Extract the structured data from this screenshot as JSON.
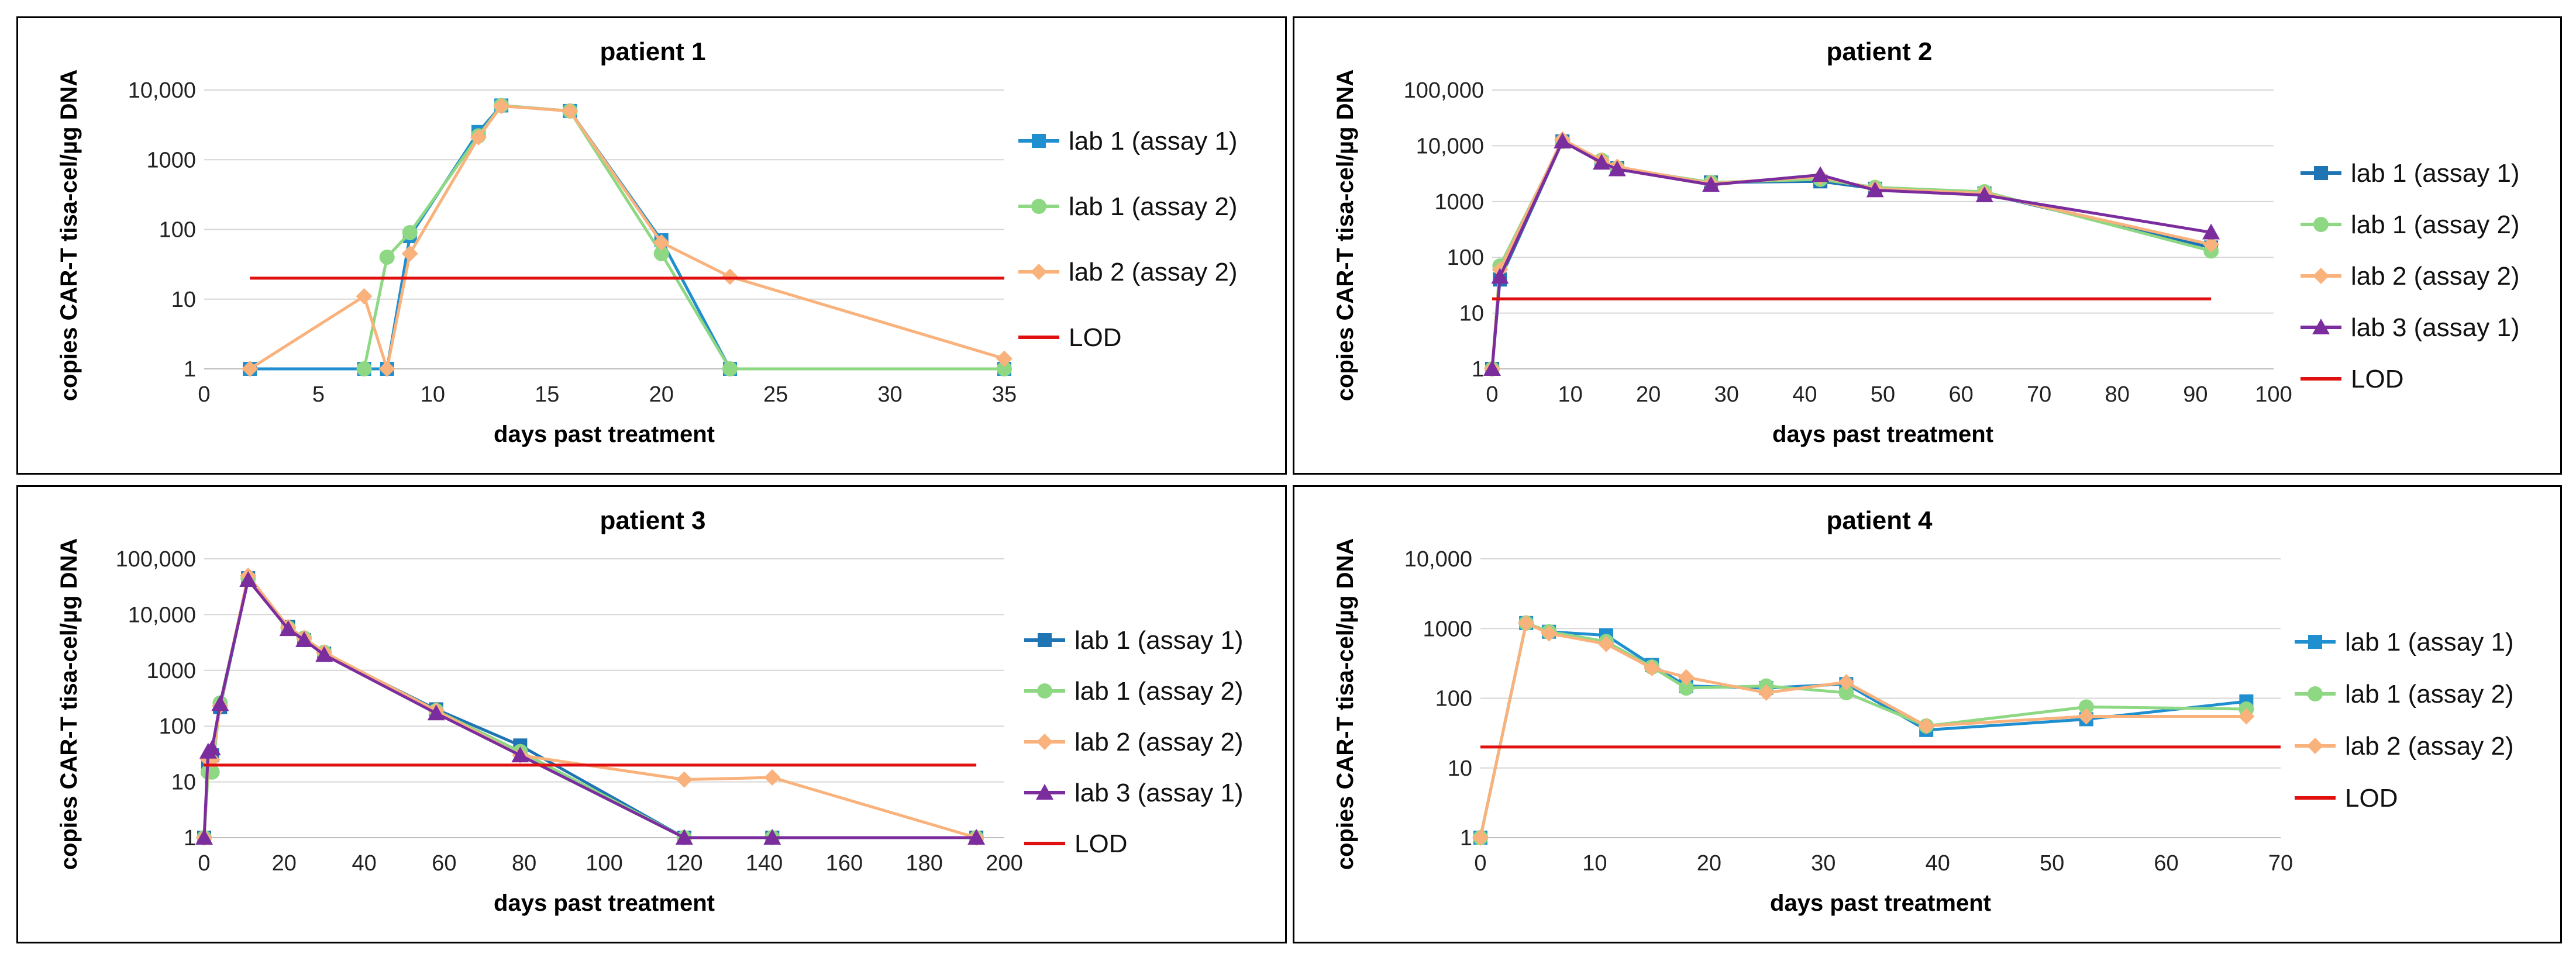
{
  "chart_data": [
    {
      "type": "line",
      "title": "patient 1",
      "xlabel": "days past treatment",
      "ylabel": "copies CAR-T tisa-cel/µg DNA",
      "yscale": "log",
      "xlim": [
        0,
        35
      ],
      "xticks": [
        0,
        5,
        10,
        15,
        20,
        25,
        30,
        35
      ],
      "ylim": [
        1,
        10000
      ],
      "yticks": [
        1,
        10,
        100,
        1000,
        10000
      ],
      "ytick_labels": [
        "1",
        "10",
        "100",
        "1000",
        "10,000"
      ],
      "grid": true,
      "legend_position": "right",
      "series": [
        {
          "name": "lab 1 (assay 1)",
          "color": "#1f8fcf",
          "marker": "square",
          "x": [
            2,
            7,
            8,
            9,
            12,
            13,
            16,
            20,
            23,
            35
          ],
          "y": [
            1,
            1,
            1,
            80,
            2500,
            6000,
            5000,
            70,
            1,
            1
          ]
        },
        {
          "name": "lab 1 (assay 2)",
          "color": "#8ed883",
          "marker": "circle",
          "x": [
            7,
            8,
            9,
            12,
            13,
            16,
            20,
            23,
            35
          ],
          "y": [
            1,
            40,
            90,
            2200,
            6000,
            5000,
            45,
            1,
            1
          ]
        },
        {
          "name": "lab 2 (assay 2)",
          "color": "#f9b27c",
          "marker": "diamond",
          "x": [
            2,
            7,
            8,
            9,
            12,
            13,
            16,
            20,
            23,
            35
          ],
          "y": [
            1,
            11,
            1,
            45,
            2100,
            5900,
            5000,
            65,
            21,
            1.4
          ]
        },
        {
          "name": "LOD",
          "color": "#e01010",
          "marker": "none",
          "x": [
            2,
            35
          ],
          "y": [
            20,
            20
          ]
        }
      ]
    },
    {
      "type": "line",
      "title": "patient 2",
      "xlabel": "days past treatment",
      "ylabel": "copies CAR-T tisa-cel/µg DNA",
      "yscale": "log",
      "xlim": [
        0,
        100
      ],
      "xticks": [
        0,
        10,
        20,
        30,
        40,
        50,
        60,
        70,
        80,
        90,
        100
      ],
      "ylim": [
        1,
        100000
      ],
      "yticks": [
        1,
        10,
        100,
        1000,
        10000,
        100000
      ],
      "ytick_labels": [
        "1",
        "10",
        "100",
        "1000",
        "10,000",
        "100,000"
      ],
      "grid": true,
      "legend_position": "right",
      "series": [
        {
          "name": "lab 1 (assay 1)",
          "color": "#1f75b4",
          "marker": "square",
          "x": [
            0,
            1,
            9,
            14,
            16,
            28,
            42,
            49,
            63,
            92
          ],
          "y": [
            1,
            40,
            12000,
            5000,
            4000,
            2200,
            2300,
            1700,
            1400,
            150
          ]
        },
        {
          "name": "lab 1 (assay 2)",
          "color": "#8ed883",
          "marker": "circle",
          "x": [
            0,
            1,
            9,
            14,
            16,
            28,
            42,
            49,
            63,
            92
          ],
          "y": [
            1,
            70,
            12000,
            5500,
            4000,
            2200,
            2500,
            1800,
            1500,
            130
          ]
        },
        {
          "name": "lab 2 (assay 2)",
          "color": "#f9b27c",
          "marker": "diamond",
          "x": [
            0,
            1,
            9,
            14,
            16,
            28,
            42,
            49,
            63,
            92
          ],
          "y": [
            1,
            60,
            13000,
            5500,
            4200,
            2100,
            2800,
            1700,
            1400,
            170
          ]
        },
        {
          "name": "lab 3 (assay 1)",
          "color": "#7b2d9e",
          "marker": "triangle",
          "x": [
            0,
            1,
            9,
            14,
            16,
            28,
            42,
            49,
            63,
            92
          ],
          "y": [
            1,
            45,
            12000,
            5000,
            3800,
            2000,
            3000,
            1600,
            1300,
            280
          ]
        },
        {
          "name": "LOD",
          "color": "#e01010",
          "marker": "none",
          "x": [
            0,
            92
          ],
          "y": [
            18,
            18
          ]
        }
      ]
    },
    {
      "type": "line",
      "title": "patient 3",
      "xlabel": "days past treatment",
      "ylabel": "copies CAR-T tisa-cel/µg DNA",
      "yscale": "log",
      "xlim": [
        0,
        200
      ],
      "xticks": [
        0,
        20,
        40,
        60,
        80,
        100,
        120,
        140,
        160,
        180,
        200
      ],
      "ylim": [
        1,
        100000
      ],
      "yticks": [
        1,
        10,
        100,
        1000,
        10000,
        100000
      ],
      "ytick_labels": [
        "1",
        "10",
        "100",
        "1000",
        "10,000",
        "100,000"
      ],
      "grid": true,
      "legend_position": "right",
      "series": [
        {
          "name": "lab 1 (assay 1)",
          "color": "#1f75b4",
          "marker": "square",
          "x": [
            0,
            1,
            2,
            4,
            11,
            21,
            25,
            30,
            58,
            79,
            120,
            142,
            193
          ],
          "y": [
            1,
            20,
            30,
            220,
            45000,
            6000,
            3500,
            2000,
            200,
            45,
            1,
            1,
            1
          ]
        },
        {
          "name": "lab 1 (assay 2)",
          "color": "#8ed883",
          "marker": "circle",
          "x": [
            0,
            1,
            2,
            4,
            11,
            21,
            25,
            30,
            58,
            79,
            120,
            142,
            193
          ],
          "y": [
            1,
            15,
            15,
            260,
            45000,
            5800,
            3800,
            2100,
            190,
            35,
            1,
            1,
            1
          ]
        },
        {
          "name": "lab 2 (assay 2)",
          "color": "#f9b27c",
          "marker": "diamond",
          "x": [
            0,
            1,
            2,
            4,
            11,
            21,
            25,
            30,
            58,
            79,
            120,
            142,
            193
          ],
          "y": [
            1,
            25,
            25,
            230,
            50000,
            6000,
            3800,
            2100,
            190,
            30,
            11,
            12,
            1
          ]
        },
        {
          "name": "lab 3 (assay 1)",
          "color": "#7b2d9e",
          "marker": "triangle",
          "x": [
            0,
            1,
            2,
            4,
            11,
            21,
            25,
            30,
            58,
            79,
            120,
            142,
            193
          ],
          "y": [
            1,
            35,
            40,
            250,
            42000,
            5500,
            3500,
            1900,
            170,
            30,
            1,
            1,
            1
          ]
        },
        {
          "name": "LOD",
          "color": "#e01010",
          "marker": "none",
          "x": [
            0,
            193
          ],
          "y": [
            20,
            20
          ]
        }
      ]
    },
    {
      "type": "line",
      "title": "patient 4",
      "xlabel": "days past treatment",
      "ylabel": "copies CAR-T tisa-cel/µg DNA",
      "yscale": "log",
      "xlim": [
        0,
        70
      ],
      "xticks": [
        0,
        10,
        20,
        30,
        40,
        50,
        60,
        70
      ],
      "ylim": [
        1,
        10000
      ],
      "yticks": [
        1,
        10,
        100,
        1000,
        10000
      ],
      "ytick_labels": [
        "1",
        "10",
        "100",
        "1000",
        "10,000"
      ],
      "grid": true,
      "legend_position": "right",
      "series": [
        {
          "name": "lab 1 (assay 1)",
          "color": "#1f8fcf",
          "marker": "square",
          "x": [
            0,
            4,
            6,
            11,
            15,
            18,
            25,
            32,
            39,
            53,
            67
          ],
          "y": [
            1,
            1200,
            900,
            800,
            300,
            150,
            140,
            160,
            35,
            50,
            90
          ]
        },
        {
          "name": "lab 1 (assay 2)",
          "color": "#8ed883",
          "marker": "circle",
          "x": [
            0,
            4,
            6,
            11,
            15,
            18,
            25,
            32,
            39,
            53,
            67
          ],
          "y": [
            1,
            1200,
            900,
            650,
            280,
            140,
            150,
            120,
            40,
            75,
            70
          ]
        },
        {
          "name": "lab 2 (assay 2)",
          "color": "#f9b27c",
          "marker": "diamond",
          "x": [
            0,
            4,
            6,
            11,
            15,
            18,
            25,
            32,
            39,
            53,
            67
          ],
          "y": [
            1,
            1200,
            850,
            600,
            270,
            200,
            120,
            170,
            40,
            55,
            55
          ]
        },
        {
          "name": "LOD",
          "color": "#e01010",
          "marker": "none",
          "x": [
            0,
            70
          ],
          "y": [
            20,
            20
          ]
        }
      ]
    }
  ]
}
